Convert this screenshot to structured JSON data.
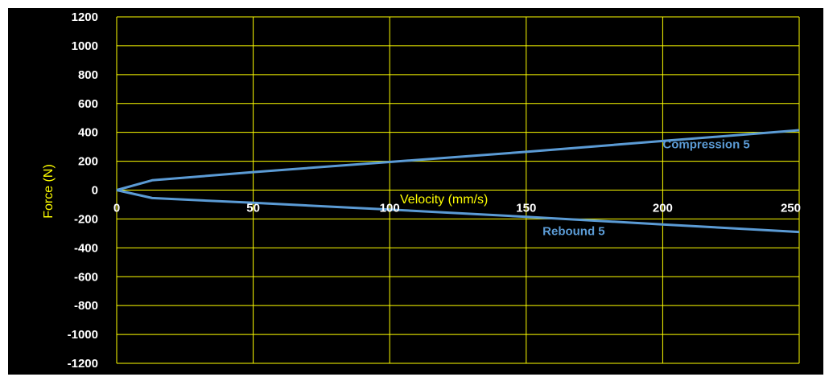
{
  "chart_data": {
    "type": "line",
    "title": "",
    "xlabel": "Velocity (mm/s)",
    "ylabel": "Force (N)",
    "xlim": [
      0,
      250
    ],
    "ylim": [
      -1200,
      1200
    ],
    "x_ticks": [
      0,
      50,
      100,
      150,
      200,
      250
    ],
    "y_ticks": [
      1200,
      1000,
      800,
      600,
      400,
      200,
      0,
      -200,
      -400,
      -600,
      -800,
      -1000,
      -1200
    ],
    "grid": true,
    "legend": "none",
    "series": [
      {
        "name": "Compression 5",
        "color": "#5b9bd5",
        "x": [
          0,
          13,
          50,
          100,
          150,
          200,
          250
        ],
        "y": [
          0,
          68,
          125,
          195,
          265,
          340,
          415
        ]
      },
      {
        "name": "Rebound 5",
        "color": "#5b9bd5",
        "x": [
          0,
          13,
          50,
          100,
          150,
          200,
          250
        ],
        "y": [
          0,
          -55,
          -88,
          -135,
          -185,
          -238,
          -290
        ]
      }
    ],
    "colors": {
      "background": "#000000",
      "grid": "#ffff00",
      "tick_labels": "#ffffff",
      "axis_titles": "#ffff00"
    }
  }
}
